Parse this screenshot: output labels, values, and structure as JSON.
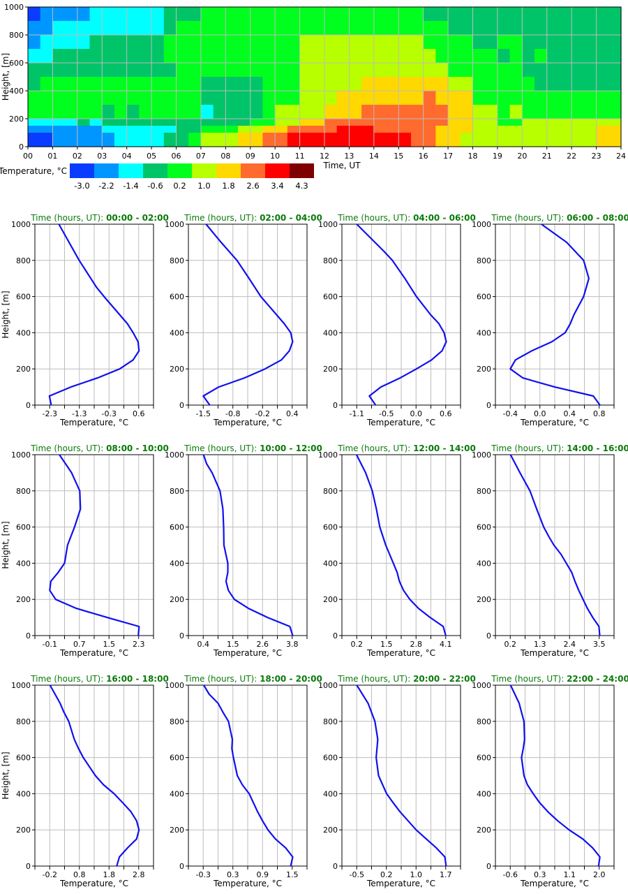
{
  "chart_data": [
    {
      "type": "heatmap",
      "xlabel": "Time, UT",
      "ylabel": "Height, [m]",
      "x_ticks": [
        "00",
        "01",
        "02",
        "03",
        "04",
        "05",
        "06",
        "07",
        "08",
        "09",
        "10",
        "11",
        "12",
        "13",
        "14",
        "15",
        "16",
        "17",
        "18",
        "19",
        "20",
        "21",
        "22",
        "23",
        "24"
      ],
      "y_ticks": [
        "0",
        "200",
        "400",
        "600",
        "800",
        "1000"
      ],
      "xlim": [
        0,
        24
      ],
      "ylim": [
        0,
        1000
      ],
      "grid": true,
      "time_step_hours": 0.5,
      "height_bins": [
        [
          900,
          1000
        ],
        [
          800,
          900
        ],
        [
          700,
          800
        ],
        [
          600,
          700
        ],
        [
          500,
          600
        ],
        [
          400,
          500
        ],
        [
          300,
          400
        ],
        [
          200,
          300
        ],
        [
          150,
          200
        ],
        [
          100,
          150
        ],
        [
          0,
          100
        ]
      ],
      "class_grid": [
        "011112222223334444444444444444443333333333333333",
        "112222222223444444444444444444444433333333333333",
        "122223333334444444444455555555554444334433333333",
        "223333333334444444444455555555555444443434333333",
        "333333333333444444444455555555555544444433333333",
        "344444444444443333344455555666666655444443333333",
        "444444444444443333344455566666667666444444444444",
        "444444343444442333345555666777777766554544444444",
        "222232333333333333445566777777777766554455555555",
        "111111222222334445566777788877777666555555555566",
        "001111122223345556677888888888877665555555555566"
      ],
      "colorbar": {
        "label": "Temperature, °C",
        "levels": [
          "-3.0",
          "-2.2",
          "-1.4",
          "-0.6",
          "0.2",
          "1.0",
          "1.8",
          "2.6",
          "3.4",
          "4.3"
        ],
        "colors": [
          "#0a3cff",
          "#0096ff",
          "#00ffff",
          "#00c468",
          "#00ff1e",
          "#b8ff00",
          "#ffd800",
          "#ff6a2e",
          "#ff0000",
          "#7f0000"
        ]
      }
    },
    {
      "type": "line",
      "title_prefix": "Time (hours, UT): ",
      "title_time": "00:00 - 02:00",
      "xlabel": "Temperature, °C",
      "ylabel": "Height, [m]",
      "x_ticks": [
        "-2.3",
        "-1.3",
        "-0.3",
        "0.6"
      ],
      "y_ticks": [
        "0",
        "200",
        "400",
        "600",
        "800",
        "1000"
      ],
      "ylim": [
        0,
        1000
      ],
      "points": [
        [
          -2.0,
          1000
        ],
        [
          -1.34,
          800
        ],
        [
          -0.77,
          650
        ],
        [
          -0.53,
          600
        ],
        [
          0.23,
          450
        ],
        [
          0.42,
          400
        ],
        [
          0.58,
          350
        ],
        [
          0.61,
          300
        ],
        [
          0.42,
          250
        ],
        [
          -0.02,
          200
        ],
        [
          -0.74,
          150
        ],
        [
          -1.61,
          100
        ],
        [
          -2.31,
          50
        ],
        [
          -2.25,
          0
        ]
      ]
    },
    {
      "type": "line",
      "title_prefix": "Time (hours, UT): ",
      "title_time": "02:00 - 04:00",
      "xlabel": "Temperature, °C",
      "ylabel": "",
      "x_ticks": [
        "-1.5",
        "-0.8",
        "-0.2",
        "0.4"
      ],
      "y_ticks": [
        "0",
        "200",
        "400",
        "600",
        "800",
        "1000"
      ],
      "ylim": [
        0,
        1000
      ],
      "points": [
        [
          -1.44,
          1000
        ],
        [
          -1.12,
          900
        ],
        [
          -0.78,
          800
        ],
        [
          -0.52,
          700
        ],
        [
          -0.27,
          600
        ],
        [
          0.23,
          450
        ],
        [
          0.37,
          400
        ],
        [
          0.41,
          350
        ],
        [
          0.34,
          300
        ],
        [
          0.17,
          250
        ],
        [
          -0.18,
          200
        ],
        [
          -0.62,
          150
        ],
        [
          -1.17,
          100
        ],
        [
          -1.5,
          50
        ],
        [
          -1.36,
          0
        ]
      ]
    },
    {
      "type": "line",
      "title_prefix": "Time (hours, UT): ",
      "title_time": "04:00 - 06:00",
      "xlabel": "Temperature, °C",
      "ylabel": "",
      "x_ticks": [
        "-1.1",
        "-0.5",
        "0.0",
        "0.6"
      ],
      "y_ticks": [
        "0",
        "200",
        "400",
        "600",
        "800",
        "1000"
      ],
      "ylim": [
        0,
        1000
      ],
      "points": [
        [
          -1.1,
          1000
        ],
        [
          -0.58,
          850
        ],
        [
          -0.42,
          800
        ],
        [
          -0.18,
          700
        ],
        [
          0.04,
          600
        ],
        [
          0.31,
          500
        ],
        [
          0.47,
          450
        ],
        [
          0.57,
          400
        ],
        [
          0.61,
          350
        ],
        [
          0.53,
          300
        ],
        [
          0.33,
          250
        ],
        [
          0.04,
          200
        ],
        [
          -0.27,
          150
        ],
        [
          -0.64,
          100
        ],
        [
          -0.86,
          50
        ],
        [
          -0.74,
          0
        ]
      ]
    },
    {
      "type": "line",
      "title_prefix": "Time (hours, UT): ",
      "title_time": "06:00 - 08:00",
      "xlabel": "Temperature, °C",
      "ylabel": "",
      "x_ticks": [
        "-0.4",
        "0.0",
        "0.4",
        "0.8"
      ],
      "y_ticks": [
        "0",
        "200",
        "400",
        "600",
        "800",
        "1000"
      ],
      "ylim": [
        0,
        1000
      ],
      "points": [
        [
          0.02,
          1000
        ],
        [
          0.36,
          900
        ],
        [
          0.59,
          800
        ],
        [
          0.66,
          700
        ],
        [
          0.59,
          600
        ],
        [
          0.46,
          500
        ],
        [
          0.41,
          450
        ],
        [
          0.34,
          400
        ],
        [
          0.16,
          350
        ],
        [
          -0.11,
          300
        ],
        [
          -0.33,
          250
        ],
        [
          -0.4,
          200
        ],
        [
          -0.23,
          150
        ],
        [
          0.2,
          100
        ],
        [
          0.72,
          50
        ],
        [
          0.81,
          0
        ]
      ]
    },
    {
      "type": "line",
      "title_prefix": "Time (hours, UT): ",
      "title_time": "08:00 - 10:00",
      "xlabel": "Temperature, °C",
      "ylabel": "Height, [m]",
      "x_ticks": [
        "-0.1",
        "0.7",
        "1.5",
        "2.3"
      ],
      "y_ticks": [
        "0",
        "200",
        "400",
        "600",
        "800",
        "1000"
      ],
      "ylim": [
        0,
        1000
      ],
      "points": [
        [
          0.16,
          1000
        ],
        [
          0.49,
          900
        ],
        [
          0.71,
          800
        ],
        [
          0.73,
          700
        ],
        [
          0.57,
          600
        ],
        [
          0.38,
          500
        ],
        [
          0.3,
          400
        ],
        [
          0.13,
          350
        ],
        [
          -0.07,
          300
        ],
        [
          -0.1,
          250
        ],
        [
          0.06,
          200
        ],
        [
          0.62,
          150
        ],
        [
          1.45,
          100
        ],
        [
          2.31,
          50
        ],
        [
          2.29,
          0
        ]
      ]
    },
    {
      "type": "line",
      "title_prefix": "Time (hours, UT): ",
      "title_time": "10:00 - 12:00",
      "xlabel": "Temperature, °C",
      "ylabel": "",
      "x_ticks": [
        "0.4",
        "1.5",
        "2.6",
        "3.8"
      ],
      "y_ticks": [
        "0",
        "200",
        "400",
        "600",
        "800",
        "1000"
      ],
      "ylim": [
        0,
        1000
      ],
      "points": [
        [
          0.41,
          1000
        ],
        [
          0.53,
          950
        ],
        [
          0.74,
          900
        ],
        [
          1.04,
          800
        ],
        [
          1.15,
          700
        ],
        [
          1.18,
          600
        ],
        [
          1.19,
          500
        ],
        [
          1.34,
          400
        ],
        [
          1.34,
          350
        ],
        [
          1.27,
          300
        ],
        [
          1.36,
          250
        ],
        [
          1.59,
          200
        ],
        [
          2.13,
          150
        ],
        [
          2.86,
          100
        ],
        [
          3.71,
          50
        ],
        [
          3.82,
          0
        ]
      ]
    },
    {
      "type": "line",
      "title_prefix": "Time (hours, UT): ",
      "title_time": "12:00 - 14:00",
      "xlabel": "Temperature, °C",
      "ylabel": "",
      "x_ticks": [
        "0.2",
        "1.5",
        "2.8",
        "4.1"
      ],
      "y_ticks": [
        "0",
        "200",
        "400",
        "600",
        "800",
        "1000"
      ],
      "ylim": [
        0,
        1000
      ],
      "points": [
        [
          0.19,
          1000
        ],
        [
          0.59,
          900
        ],
        [
          0.88,
          800
        ],
        [
          1.06,
          700
        ],
        [
          1.21,
          600
        ],
        [
          1.47,
          500
        ],
        [
          1.64,
          450
        ],
        [
          1.97,
          350
        ],
        [
          2.07,
          300
        ],
        [
          2.25,
          250
        ],
        [
          2.53,
          200
        ],
        [
          2.91,
          150
        ],
        [
          3.42,
          100
        ],
        [
          3.99,
          50
        ],
        [
          4.1,
          0
        ]
      ]
    },
    {
      "type": "line",
      "title_prefix": "Time (hours, UT): ",
      "title_time": "14:00 - 16:00",
      "xlabel": "Temperature, °C",
      "ylabel": "",
      "x_ticks": [
        "0.2",
        "1.3",
        "2.4",
        "3.5"
      ],
      "y_ticks": [
        "0",
        "200",
        "400",
        "600",
        "800",
        "1000"
      ],
      "ylim": [
        0,
        1000
      ],
      "points": [
        [
          0.21,
          1000
        ],
        [
          0.56,
          900
        ],
        [
          0.93,
          800
        ],
        [
          1.18,
          700
        ],
        [
          1.44,
          600
        ],
        [
          1.62,
          550
        ],
        [
          1.82,
          500
        ],
        [
          2.08,
          450
        ],
        [
          2.48,
          350
        ],
        [
          2.6,
          300
        ],
        [
          2.74,
          250
        ],
        [
          2.9,
          200
        ],
        [
          3.06,
          150
        ],
        [
          3.26,
          100
        ],
        [
          3.49,
          50
        ],
        [
          3.52,
          0
        ]
      ]
    },
    {
      "type": "line",
      "title_prefix": "Time (hours, UT): ",
      "title_time": "16:00 - 18:00",
      "xlabel": "Temperature, °C",
      "ylabel": "Height, [m]",
      "x_ticks": [
        "-0.2",
        "0.8",
        "1.8",
        "2.8"
      ],
      "y_ticks": [
        "0",
        "200",
        "400",
        "600",
        "800",
        "1000"
      ],
      "ylim": [
        0,
        1000
      ],
      "points": [
        [
          -0.19,
          1000
        ],
        [
          0.15,
          900
        ],
        [
          0.28,
          850
        ],
        [
          0.44,
          800
        ],
        [
          0.63,
          700
        ],
        [
          0.77,
          650
        ],
        [
          0.93,
          600
        ],
        [
          1.34,
          500
        ],
        [
          1.61,
          450
        ],
        [
          1.97,
          400
        ],
        [
          2.26,
          350
        ],
        [
          2.54,
          300
        ],
        [
          2.73,
          250
        ],
        [
          2.81,
          200
        ],
        [
          2.73,
          150
        ],
        [
          2.42,
          100
        ],
        [
          2.15,
          50
        ],
        [
          2.06,
          0
        ]
      ]
    },
    {
      "type": "line",
      "title_prefix": "Time (hours, UT): ",
      "title_time": "18:00 - 20:00",
      "xlabel": "Temperature, °C",
      "ylabel": "",
      "x_ticks": [
        "-0.3",
        "0.3",
        "0.9",
        "1.5"
      ],
      "y_ticks": [
        "0",
        "200",
        "400",
        "600",
        "800",
        "1000"
      ],
      "ylim": [
        0,
        1000
      ],
      "points": [
        [
          -0.29,
          1000
        ],
        [
          -0.18,
          950
        ],
        [
          0.0,
          900
        ],
        [
          0.1,
          850
        ],
        [
          0.21,
          800
        ],
        [
          0.29,
          700
        ],
        [
          0.28,
          650
        ],
        [
          0.31,
          600
        ],
        [
          0.39,
          500
        ],
        [
          0.49,
          450
        ],
        [
          0.63,
          400
        ],
        [
          0.8,
          300
        ],
        [
          0.9,
          250
        ],
        [
          1.01,
          200
        ],
        [
          1.16,
          150
        ],
        [
          1.37,
          100
        ],
        [
          1.51,
          50
        ],
        [
          1.47,
          0
        ]
      ]
    },
    {
      "type": "line",
      "title_prefix": "Time (hours, UT): ",
      "title_time": "20:00 - 22:00",
      "xlabel": "Temperature, °C",
      "ylabel": "",
      "x_ticks": [
        "-0.5",
        "0.2",
        "1.0",
        "1.7"
      ],
      "y_ticks": [
        "0",
        "200",
        "400",
        "600",
        "800",
        "1000"
      ],
      "ylim": [
        0,
        1000
      ],
      "points": [
        [
          -0.5,
          1000
        ],
        [
          -0.22,
          900
        ],
        [
          -0.05,
          800
        ],
        [
          0.02,
          700
        ],
        [
          -0.02,
          600
        ],
        [
          0.04,
          500
        ],
        [
          0.24,
          400
        ],
        [
          0.4,
          350
        ],
        [
          0.57,
          300
        ],
        [
          0.97,
          200
        ],
        [
          1.22,
          150
        ],
        [
          1.47,
          100
        ],
        [
          1.68,
          50
        ],
        [
          1.71,
          0
        ]
      ]
    },
    {
      "type": "line",
      "title_prefix": "Time (hours, UT): ",
      "title_time": "22:00 - 24:00",
      "xlabel": "Temperature, °C",
      "ylabel": "",
      "x_ticks": [
        "-0.6",
        "0.3",
        "1.1",
        "2.0"
      ],
      "y_ticks": [
        "0",
        "200",
        "400",
        "600",
        "800",
        "1000"
      ],
      "ylim": [
        0,
        1000
      ],
      "points": [
        [
          -0.59,
          1000
        ],
        [
          -0.34,
          900
        ],
        [
          -0.27,
          850
        ],
        [
          -0.2,
          800
        ],
        [
          -0.18,
          700
        ],
        [
          -0.22,
          650
        ],
        [
          -0.27,
          600
        ],
        [
          -0.2,
          500
        ],
        [
          -0.1,
          450
        ],
        [
          0.07,
          400
        ],
        [
          0.26,
          350
        ],
        [
          0.5,
          300
        ],
        [
          0.79,
          250
        ],
        [
          1.12,
          200
        ],
        [
          1.52,
          150
        ],
        [
          1.81,
          100
        ],
        [
          2.02,
          50
        ],
        [
          1.98,
          0
        ]
      ]
    }
  ],
  "colors": {
    "line": "#1010ee",
    "title": "#0a7a0a",
    "grid": "#bdbdbd"
  }
}
